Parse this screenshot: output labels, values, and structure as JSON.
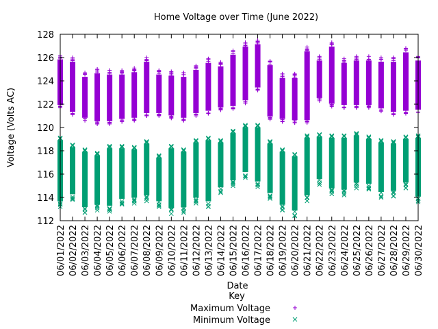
{
  "chart_data": {
    "type": "scatter",
    "title": "Home Voltage over Time (June 2022)",
    "xlabel": "Date",
    "ylabel": "Voltage (Volts AC)",
    "ylim": [
      112,
      128
    ],
    "yticks": [
      "112",
      "114",
      "116",
      "118",
      "120",
      "122",
      "124",
      "126",
      "128"
    ],
    "grid": false,
    "legend": {
      "title": "Key",
      "placement": "bottom-center",
      "entries": [
        "Maximum Voltage",
        "Minimum Voltage"
      ]
    },
    "categories": [
      "06/01/2022",
      "06/02/2022",
      "06/03/2022",
      "06/04/2022",
      "06/05/2022",
      "06/06/2022",
      "06/07/2022",
      "06/08/2022",
      "06/09/2022",
      "06/10/2022",
      "06/11/2022",
      "06/12/2022",
      "06/13/2022",
      "06/14/2022",
      "06/15/2022",
      "06/16/2022",
      "06/17/2022",
      "06/18/2022",
      "06/19/2022",
      "06/20/2022",
      "06/21/2022",
      "06/22/2022",
      "06/23/2022",
      "06/24/2022",
      "06/25/2022",
      "06/26/2022",
      "06/27/2022",
      "06/28/2022",
      "06/29/2022",
      "06/30/2022"
    ],
    "series": [
      {
        "name": "Maximum Voltage",
        "marker": "+",
        "color": "#9400d3",
        "high": [
          126.2,
          126.0,
          124.7,
          125.0,
          124.9,
          124.9,
          125.1,
          126.0,
          124.9,
          124.8,
          124.7,
          125.3,
          125.9,
          125.6,
          126.6,
          127.3,
          127.5,
          125.7,
          124.6,
          124.6,
          126.9,
          126.1,
          127.3,
          125.9,
          126.1,
          126.1,
          126.0,
          126.0,
          126.8,
          126.1
        ],
        "low": [
          121.7,
          121.1,
          120.6,
          120.3,
          120.3,
          120.5,
          120.6,
          121.0,
          121.0,
          120.8,
          120.6,
          121.0,
          121.2,
          121.5,
          121.6,
          122.1,
          123.2,
          120.7,
          120.5,
          120.4,
          120.4,
          122.3,
          121.8,
          121.7,
          121.7,
          121.7,
          121.4,
          121.1,
          121.2,
          121.3
        ]
      },
      {
        "name": "Minimum Voltage",
        "marker": "x",
        "color": "#009e73",
        "high": [
          119.1,
          118.5,
          118.1,
          117.8,
          118.4,
          118.4,
          118.3,
          118.8,
          117.6,
          118.4,
          118.1,
          118.9,
          119.1,
          118.9,
          119.7,
          120.2,
          120.2,
          118.8,
          118.1,
          117.7,
          119.3,
          119.4,
          119.3,
          119.3,
          119.5,
          119.2,
          118.9,
          118.8,
          119.2,
          119.3
        ],
        "low": [
          113.2,
          113.8,
          112.7,
          112.9,
          112.8,
          113.4,
          113.5,
          113.7,
          113.2,
          112.6,
          112.7,
          113.5,
          113.2,
          114.4,
          115.0,
          115.7,
          114.9,
          113.9,
          112.9,
          112.4,
          113.7,
          115.1,
          114.3,
          114.2,
          114.8,
          114.7,
          114.0,
          114.1,
          114.8,
          113.6
        ]
      }
    ]
  }
}
